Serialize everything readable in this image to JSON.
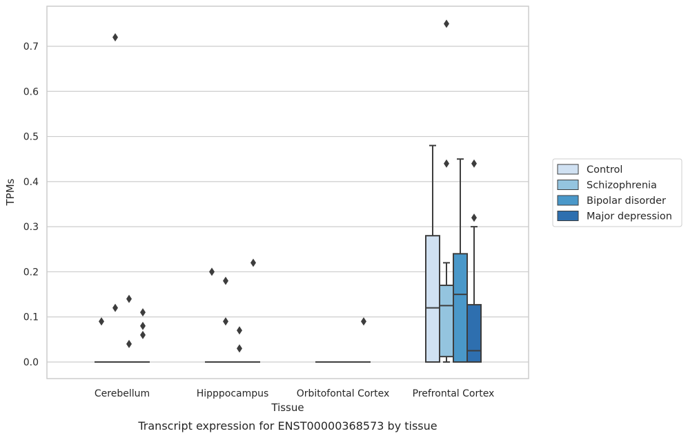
{
  "chart_data": {
    "type": "box",
    "title": "",
    "caption": "Transcript expression for ENST00000368573 by tissue",
    "xlabel": "Tissue",
    "ylabel": "TPMs",
    "ylim": [
      -0.037,
      0.787
    ],
    "yticks": [
      "0.0",
      "0.1",
      "0.2",
      "0.3",
      "0.4",
      "0.5",
      "0.6",
      "0.7"
    ],
    "grid": "horizontal",
    "legend_position": "right",
    "categories": [
      "Cerebellum",
      "Hipppocampus",
      "Orbitofontal Cortex",
      "Prefrontal Cortex"
    ],
    "series": [
      {
        "name": "Control",
        "color": "#d0e1f2",
        "boxes": [
          {
            "q1": 0,
            "median": 0,
            "q3": 0,
            "whisker_low": 0,
            "whisker_high": 0,
            "outliers": [
              0.09
            ]
          },
          {
            "q1": 0,
            "median": 0,
            "q3": 0,
            "whisker_low": 0,
            "whisker_high": 0,
            "outliers": [
              0.2
            ]
          },
          {
            "q1": 0,
            "median": 0,
            "q3": 0,
            "whisker_low": 0,
            "whisker_high": 0,
            "outliers": []
          },
          {
            "q1": 0,
            "median": 0.12,
            "q3": 0.28,
            "whisker_low": 0,
            "whisker_high": 0.48,
            "outliers": []
          }
        ]
      },
      {
        "name": "Schizophrenia",
        "color": "#94c4df",
        "boxes": [
          {
            "q1": 0,
            "median": 0,
            "q3": 0,
            "whisker_low": 0,
            "whisker_high": 0,
            "outliers": [
              0.72,
              0.12
            ]
          },
          {
            "q1": 0,
            "median": 0,
            "q3": 0,
            "whisker_low": 0,
            "whisker_high": 0,
            "outliers": [
              0.18,
              0.09
            ]
          },
          {
            "q1": 0,
            "median": 0,
            "q3": 0,
            "whisker_low": 0,
            "whisker_high": 0,
            "outliers": []
          },
          {
            "q1": 0.012,
            "median": 0.125,
            "q3": 0.17,
            "whisker_low": 0,
            "whisker_high": 0.22,
            "outliers": [
              0.75,
              0.44
            ]
          }
        ]
      },
      {
        "name": "Bipolar disorder",
        "color": "#4a98c9",
        "boxes": [
          {
            "q1": 0,
            "median": 0,
            "q3": 0,
            "whisker_low": 0,
            "whisker_high": 0,
            "outliers": [
              0.14,
              0.04
            ]
          },
          {
            "q1": 0,
            "median": 0,
            "q3": 0,
            "whisker_low": 0,
            "whisker_high": 0,
            "outliers": [
              0.07,
              0.03
            ]
          },
          {
            "q1": 0,
            "median": 0,
            "q3": 0,
            "whisker_low": 0,
            "whisker_high": 0,
            "outliers": []
          },
          {
            "q1": 0,
            "median": 0.15,
            "q3": 0.24,
            "whisker_low": 0,
            "whisker_high": 0.45,
            "outliers": []
          }
        ]
      },
      {
        "name": "Major depression",
        "color": "#2e6faf",
        "boxes": [
          {
            "q1": 0,
            "median": 0,
            "q3": 0,
            "whisker_low": 0,
            "whisker_high": 0,
            "outliers": [
              0.11,
              0.08,
              0.06
            ]
          },
          {
            "q1": 0,
            "median": 0,
            "q3": 0,
            "whisker_low": 0,
            "whisker_high": 0,
            "outliers": [
              0.22
            ]
          },
          {
            "q1": 0,
            "median": 0,
            "q3": 0,
            "whisker_low": 0,
            "whisker_high": 0,
            "outliers": [
              0.09
            ]
          },
          {
            "q1": 0,
            "median": 0.025,
            "q3": 0.127,
            "whisker_low": 0,
            "whisker_high": 0.3,
            "outliers": [
              0.44,
              0.32
            ]
          }
        ]
      }
    ]
  }
}
